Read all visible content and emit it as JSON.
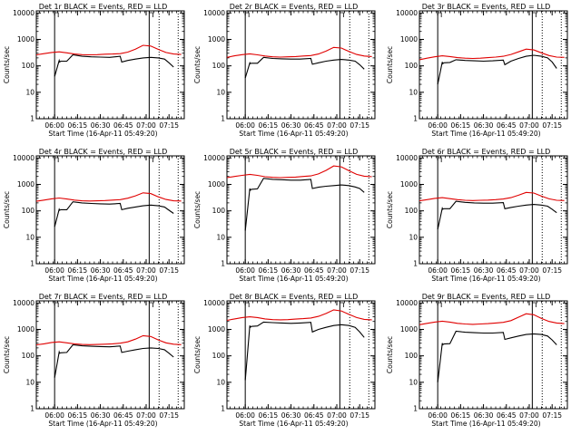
{
  "colors": {
    "events": "#000000",
    "lld": "#e00000",
    "axes": "#000000"
  },
  "chart_data": [
    {
      "type": "line",
      "title": "Det 1r  BLACK = Events, RED = LLD",
      "ylabel": "Counts/sec",
      "xlabel": "Start Time (16-Apr-11 05:49:20)",
      "yscale": "log",
      "ylim": [
        1,
        12000
      ],
      "xlim": [
        0,
        97
      ],
      "ytick_labels": [
        "1",
        "10",
        "100",
        "1000",
        "10000"
      ],
      "xtick_labels": [
        "06:00",
        "06:15",
        "06:30",
        "06:45",
        "07:00",
        "07:15"
      ],
      "series": [
        {
          "name": "Events",
          "color": "#000000",
          "x": [
            12,
            15,
            15.3,
            16,
            20,
            24,
            30,
            36,
            42,
            48,
            55,
            56,
            60,
            65,
            70,
            75,
            80,
            84,
            87,
            90
          ],
          "y": [
            40,
            160,
            140,
            150,
            150,
            260,
            230,
            220,
            215,
            210,
            230,
            140,
            160,
            180,
            200,
            210,
            200,
            180,
            130,
            90
          ]
        },
        {
          "name": "LLD",
          "color": "#e00000",
          "x": [
            0,
            5,
            10,
            15,
            20,
            25,
            30,
            35,
            40,
            45,
            50,
            55,
            60,
            65,
            70,
            75,
            80,
            85,
            90,
            95
          ],
          "y": [
            260,
            290,
            320,
            340,
            310,
            280,
            265,
            260,
            265,
            275,
            280,
            290,
            330,
            430,
            600,
            560,
            420,
            320,
            280,
            270
          ]
        }
      ]
    },
    {
      "type": "line",
      "title": "Det 2r  BLACK = Events, RED = LLD",
      "ylabel": "Counts/sec",
      "xlabel": "Start Time (16-Apr-11 05:49:20)",
      "yscale": "log",
      "ylim": [
        1,
        12000
      ],
      "xlim": [
        0,
        97
      ],
      "ytick_labels": [
        "1",
        "10",
        "100",
        "1000",
        "10000"
      ],
      "xtick_labels": [
        "06:00",
        "06:15",
        "06:30",
        "06:45",
        "07:00",
        "07:15"
      ],
      "series": [
        {
          "name": "Events",
          "color": "#000000",
          "x": [
            12,
            15,
            15.3,
            16,
            20,
            24,
            30,
            36,
            42,
            48,
            55,
            56,
            60,
            65,
            70,
            75,
            80,
            84,
            87,
            90
          ],
          "y": [
            35,
            130,
            120,
            125,
            125,
            210,
            190,
            185,
            180,
            180,
            190,
            115,
            130,
            150,
            165,
            175,
            165,
            150,
            110,
            75
          ]
        },
        {
          "name": "LLD",
          "color": "#e00000",
          "x": [
            0,
            5,
            10,
            15,
            20,
            25,
            30,
            35,
            40,
            45,
            50,
            55,
            60,
            65,
            70,
            75,
            80,
            85,
            90,
            95
          ],
          "y": [
            210,
            240,
            265,
            285,
            260,
            235,
            220,
            215,
            220,
            225,
            235,
            245,
            280,
            360,
            500,
            470,
            350,
            270,
            235,
            225
          ]
        }
      ]
    },
    {
      "type": "line",
      "title": "Det 3r  BLACK = Events, RED = LLD",
      "ylabel": "Counts/sec",
      "xlabel": "Start Time (16-Apr-11 05:49:20)",
      "yscale": "log",
      "ylim": [
        1,
        12000
      ],
      "xlim": [
        0,
        97
      ],
      "ytick_labels": [
        "1",
        "10",
        "100",
        "1000",
        "10000"
      ],
      "xtick_labels": [
        "06:00",
        "06:15",
        "06:30",
        "06:45",
        "07:00",
        "07:15"
      ],
      "series": [
        {
          "name": "Events",
          "color": "#000000",
          "x": [
            12,
            15,
            15.3,
            16,
            20,
            24,
            30,
            36,
            42,
            48,
            55,
            56,
            60,
            65,
            70,
            75,
            80,
            84,
            87,
            90
          ],
          "y": [
            20,
            140,
            120,
            130,
            135,
            170,
            160,
            155,
            150,
            155,
            165,
            110,
            150,
            190,
            230,
            250,
            230,
            200,
            140,
            80
          ]
        },
        {
          "name": "LLD",
          "color": "#e00000",
          "x": [
            0,
            5,
            10,
            15,
            20,
            25,
            30,
            35,
            40,
            45,
            50,
            55,
            60,
            65,
            70,
            75,
            80,
            85,
            90,
            95
          ],
          "y": [
            170,
            195,
            220,
            240,
            225,
            205,
            195,
            190,
            195,
            205,
            215,
            230,
            270,
            340,
            430,
            400,
            310,
            245,
            215,
            210
          ]
        }
      ]
    },
    {
      "type": "line",
      "title": "Det 4r  BLACK = Events, RED = LLD",
      "ylabel": "Counts/sec",
      "xlabel": "Start Time (16-Apr-11 05:49:20)",
      "yscale": "log",
      "ylim": [
        1,
        12000
      ],
      "xlim": [
        0,
        97
      ],
      "ytick_labels": [
        "1",
        "10",
        "100",
        "1000",
        "10000"
      ],
      "xtick_labels": [
        "06:00",
        "06:15",
        "06:30",
        "06:45",
        "07:00",
        "07:15"
      ],
      "series": [
        {
          "name": "Events",
          "color": "#000000",
          "x": [
            12,
            15,
            15.3,
            16,
            20,
            24,
            30,
            36,
            42,
            48,
            55,
            56,
            60,
            65,
            70,
            75,
            80,
            84,
            87,
            90
          ],
          "y": [
            25,
            115,
            105,
            110,
            110,
            220,
            200,
            190,
            185,
            180,
            190,
            110,
            125,
            140,
            155,
            165,
            155,
            140,
            105,
            80
          ]
        },
        {
          "name": "LLD",
          "color": "#e00000",
          "x": [
            0,
            5,
            10,
            15,
            20,
            25,
            30,
            35,
            40,
            45,
            50,
            55,
            60,
            65,
            70,
            75,
            80,
            85,
            90,
            95
          ],
          "y": [
            230,
            255,
            285,
            305,
            280,
            255,
            240,
            235,
            240,
            245,
            255,
            265,
            300,
            370,
            480,
            450,
            340,
            270,
            240,
            235
          ]
        }
      ]
    },
    {
      "type": "line",
      "title": "Det 5r  BLACK = Events, RED = LLD",
      "ylabel": "Counts/sec",
      "xlabel": "Start Time (16-Apr-11 05:49:20)",
      "yscale": "log",
      "ylim": [
        1,
        12000
      ],
      "xlim": [
        0,
        97
      ],
      "ytick_labels": [
        "1",
        "10",
        "100",
        "1000",
        "10000"
      ],
      "xtick_labels": [
        "06:00",
        "06:15",
        "06:30",
        "06:45",
        "07:00",
        "07:15"
      ],
      "series": [
        {
          "name": "Events",
          "color": "#000000",
          "x": [
            12,
            15,
            15.3,
            16,
            20,
            24,
            30,
            36,
            42,
            48,
            55,
            56,
            60,
            65,
            70,
            75,
            80,
            84,
            87,
            90
          ],
          "y": [
            18,
            700,
            600,
            650,
            680,
            1700,
            1550,
            1500,
            1450,
            1450,
            1550,
            700,
            780,
            850,
            900,
            950,
            900,
            800,
            700,
            500
          ]
        },
        {
          "name": "LLD",
          "color": "#e00000",
          "x": [
            0,
            5,
            10,
            15,
            20,
            25,
            30,
            35,
            40,
            45,
            50,
            55,
            60,
            65,
            70,
            75,
            80,
            85,
            90,
            95
          ],
          "y": [
            1800,
            2000,
            2200,
            2400,
            2200,
            1950,
            1850,
            1800,
            1850,
            1900,
            2000,
            2100,
            2500,
            3400,
            5000,
            4600,
            3300,
            2400,
            2050,
            1950
          ]
        }
      ]
    },
    {
      "type": "line",
      "title": "Det 6r  BLACK = Events, RED = LLD",
      "ylabel": "Counts/sec",
      "xlabel": "Start Time (16-Apr-11 05:49:20)",
      "yscale": "log",
      "ylim": [
        1,
        12000
      ],
      "xlim": [
        0,
        97
      ],
      "ytick_labels": [
        "1",
        "10",
        "100",
        "1000",
        "10000"
      ],
      "xtick_labels": [
        "06:00",
        "06:15",
        "06:30",
        "06:45",
        "07:00",
        "07:15"
      ],
      "series": [
        {
          "name": "Events",
          "color": "#000000",
          "x": [
            12,
            15,
            15.3,
            16,
            20,
            24,
            30,
            36,
            42,
            48,
            55,
            56,
            60,
            65,
            70,
            75,
            80,
            84,
            87,
            90
          ],
          "y": [
            20,
            125,
            115,
            120,
            120,
            230,
            210,
            200,
            195,
            195,
            205,
            120,
            135,
            150,
            165,
            175,
            165,
            150,
            115,
            85
          ]
        },
        {
          "name": "LLD",
          "color": "#e00000",
          "x": [
            0,
            5,
            10,
            15,
            20,
            25,
            30,
            35,
            40,
            45,
            50,
            55,
            60,
            65,
            70,
            75,
            80,
            85,
            90,
            95
          ],
          "y": [
            240,
            265,
            295,
            315,
            290,
            265,
            250,
            245,
            250,
            255,
            265,
            280,
            315,
            390,
            500,
            470,
            360,
            285,
            250,
            245
          ]
        }
      ]
    },
    {
      "type": "line",
      "title": "Det 7r  BLACK = Events, RED = LLD",
      "ylabel": "Counts/sec",
      "xlabel": "Start Time (16-Apr-11 05:49:20)",
      "yscale": "log",
      "ylim": [
        1,
        12000
      ],
      "xlim": [
        0,
        97
      ],
      "ytick_labels": [
        "1",
        "10",
        "100",
        "1000",
        "10000"
      ],
      "xtick_labels": [
        "06:00",
        "06:15",
        "06:30",
        "06:45",
        "07:00",
        "07:15"
      ],
      "series": [
        {
          "name": "Events",
          "color": "#000000",
          "x": [
            12,
            15,
            15.3,
            16,
            20,
            24,
            30,
            36,
            42,
            48,
            55,
            56,
            60,
            65,
            70,
            75,
            80,
            84,
            87,
            90
          ],
          "y": [
            15,
            140,
            125,
            130,
            135,
            260,
            240,
            230,
            225,
            220,
            235,
            135,
            150,
            170,
            190,
            200,
            190,
            170,
            125,
            90
          ]
        },
        {
          "name": "LLD",
          "color": "#e00000",
          "x": [
            0,
            5,
            10,
            15,
            20,
            25,
            30,
            35,
            40,
            45,
            50,
            55,
            60,
            65,
            70,
            75,
            80,
            85,
            90,
            95
          ],
          "y": [
            260,
            285,
            320,
            340,
            310,
            285,
            270,
            265,
            270,
            275,
            285,
            300,
            340,
            430,
            580,
            540,
            400,
            310,
            275,
            265
          ]
        }
      ]
    },
    {
      "type": "line",
      "title": "Det 8r  BLACK = Events, RED = LLD",
      "ylabel": "Counts/sec",
      "xlabel": "Start Time (16-Apr-11 05:49:20)",
      "yscale": "log",
      "ylim": [
        1,
        12000
      ],
      "xlim": [
        0,
        97
      ],
      "ytick_labels": [
        "1",
        "10",
        "100",
        "1000",
        "10000"
      ],
      "xtick_labels": [
        "06:00",
        "06:15",
        "06:30",
        "06:45",
        "07:00",
        "07:15"
      ],
      "series": [
        {
          "name": "Events",
          "color": "#000000",
          "x": [
            12,
            15,
            15.3,
            16,
            20,
            24,
            30,
            36,
            42,
            48,
            55,
            56,
            60,
            65,
            70,
            75,
            80,
            84,
            87,
            90
          ],
          "y": [
            12,
            1400,
            1200,
            1300,
            1350,
            1900,
            1800,
            1750,
            1700,
            1750,
            1850,
            800,
            1000,
            1200,
            1400,
            1500,
            1400,
            1200,
            800,
            500
          ]
        },
        {
          "name": "LLD",
          "color": "#e00000",
          "x": [
            0,
            5,
            10,
            15,
            20,
            25,
            30,
            35,
            40,
            45,
            50,
            55,
            60,
            65,
            70,
            75,
            80,
            85,
            90,
            95
          ],
          "y": [
            2200,
            2500,
            2800,
            3000,
            2800,
            2500,
            2350,
            2300,
            2350,
            2450,
            2550,
            2700,
            3100,
            4000,
            5500,
            5000,
            3700,
            2800,
            2400,
            2300
          ]
        }
      ]
    },
    {
      "type": "line",
      "title": "Det 9r  BLACK = Events, RED = LLD",
      "ylabel": "Counts/sec",
      "xlabel": "Start Time (16-Apr-11 05:49:20)",
      "yscale": "log",
      "ylim": [
        1,
        12000
      ],
      "xlim": [
        0,
        97
      ],
      "ytick_labels": [
        "1",
        "10",
        "100",
        "1000",
        "10000"
      ],
      "xtick_labels": [
        "06:00",
        "06:15",
        "06:30",
        "06:45",
        "07:00",
        "07:15"
      ],
      "series": [
        {
          "name": "Events",
          "color": "#000000",
          "x": [
            12,
            15,
            15.3,
            16,
            20,
            24,
            30,
            36,
            42,
            48,
            55,
            56,
            60,
            65,
            70,
            75,
            80,
            84,
            87,
            90
          ],
          "y": [
            10,
            300,
            260,
            280,
            290,
            850,
            780,
            750,
            730,
            730,
            770,
            420,
            480,
            560,
            640,
            680,
            640,
            560,
            400,
            260
          ]
        },
        {
          "name": "LLD",
          "color": "#e00000",
          "x": [
            0,
            5,
            10,
            15,
            20,
            25,
            30,
            35,
            40,
            45,
            50,
            55,
            60,
            65,
            70,
            75,
            80,
            85,
            90,
            95
          ],
          "y": [
            1500,
            1700,
            1900,
            2050,
            1900,
            1700,
            1600,
            1550,
            1600,
            1650,
            1750,
            1850,
            2150,
            2900,
            3900,
            3600,
            2600,
            2000,
            1750,
            1650
          ]
        }
      ]
    }
  ]
}
